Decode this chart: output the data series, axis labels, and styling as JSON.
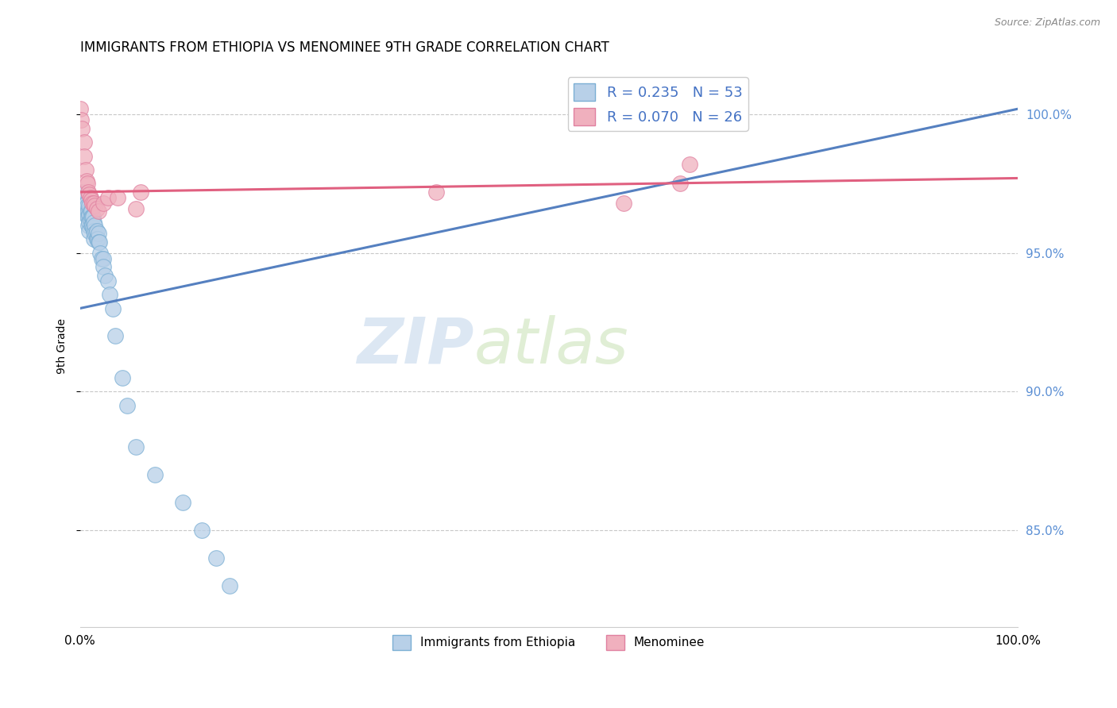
{
  "title": "IMMIGRANTS FROM ETHIOPIA VS MENOMINEE 9TH GRADE CORRELATION CHART",
  "source_text": "Source: ZipAtlas.com",
  "ylabel": "9th Grade",
  "ytick_labels": [
    "85.0%",
    "90.0%",
    "95.0%",
    "100.0%"
  ],
  "ytick_values": [
    0.85,
    0.9,
    0.95,
    1.0
  ],
  "xlim": [
    0.0,
    1.0
  ],
  "ylim": [
    0.815,
    1.018
  ],
  "watermark_zip": "ZIP",
  "watermark_atlas": "atlas",
  "blue_scatter_x": [
    0.002,
    0.004,
    0.005,
    0.006,
    0.007,
    0.007,
    0.008,
    0.008,
    0.009,
    0.009,
    0.009,
    0.01,
    0.01,
    0.01,
    0.01,
    0.011,
    0.011,
    0.012,
    0.012,
    0.012,
    0.013,
    0.013,
    0.014,
    0.014,
    0.015,
    0.015,
    0.015,
    0.016,
    0.016,
    0.017,
    0.018,
    0.018,
    0.019,
    0.02,
    0.02,
    0.021,
    0.022,
    0.023,
    0.025,
    0.025,
    0.027,
    0.03,
    0.032,
    0.035,
    0.038,
    0.045,
    0.05,
    0.06,
    0.08,
    0.11,
    0.13,
    0.145,
    0.16
  ],
  "blue_scatter_y": [
    0.972,
    0.968,
    0.97,
    0.968,
    0.968,
    0.965,
    0.967,
    0.963,
    0.965,
    0.963,
    0.96,
    0.967,
    0.964,
    0.961,
    0.958,
    0.965,
    0.962,
    0.965,
    0.963,
    0.96,
    0.963,
    0.96,
    0.963,
    0.959,
    0.961,
    0.958,
    0.955,
    0.96,
    0.957,
    0.957,
    0.958,
    0.955,
    0.955,
    0.957,
    0.954,
    0.954,
    0.95,
    0.948,
    0.948,
    0.945,
    0.942,
    0.94,
    0.935,
    0.93,
    0.92,
    0.905,
    0.895,
    0.88,
    0.87,
    0.86,
    0.85,
    0.84,
    0.83
  ],
  "pink_scatter_x": [
    0.0,
    0.001,
    0.002,
    0.005,
    0.005,
    0.006,
    0.007,
    0.008,
    0.009,
    0.01,
    0.011,
    0.012,
    0.013,
    0.015,
    0.016,
    0.018,
    0.02,
    0.025,
    0.03,
    0.04,
    0.06,
    0.065,
    0.38,
    0.58,
    0.64,
    0.65
  ],
  "pink_scatter_y": [
    1.002,
    0.998,
    0.995,
    0.99,
    0.985,
    0.98,
    0.976,
    0.975,
    0.972,
    0.971,
    0.97,
    0.969,
    0.968,
    0.968,
    0.967,
    0.966,
    0.965,
    0.968,
    0.97,
    0.97,
    0.966,
    0.972,
    0.972,
    0.968,
    0.975,
    0.982
  ],
  "blue_line_x": [
    0.0,
    1.0
  ],
  "blue_line_y_start": 0.93,
  "blue_line_y_end": 1.002,
  "pink_line_x": [
    0.0,
    1.0
  ],
  "pink_line_y_start": 0.972,
  "pink_line_y_end": 0.977,
  "grid_color": "#c8c8c8",
  "blue_dot_face": "#b8d0e8",
  "blue_dot_edge": "#7bafd4",
  "pink_dot_face": "#f0b0be",
  "pink_dot_edge": "#e080a0",
  "blue_line_color": "#5580c0",
  "pink_line_color": "#e06080",
  "title_fontsize": 12,
  "legend_r_labels": [
    "R = 0.235   N = 53",
    "R = 0.070   N = 26"
  ],
  "legend_bottom_labels": [
    "Immigrants from Ethiopia",
    "Menominee"
  ]
}
